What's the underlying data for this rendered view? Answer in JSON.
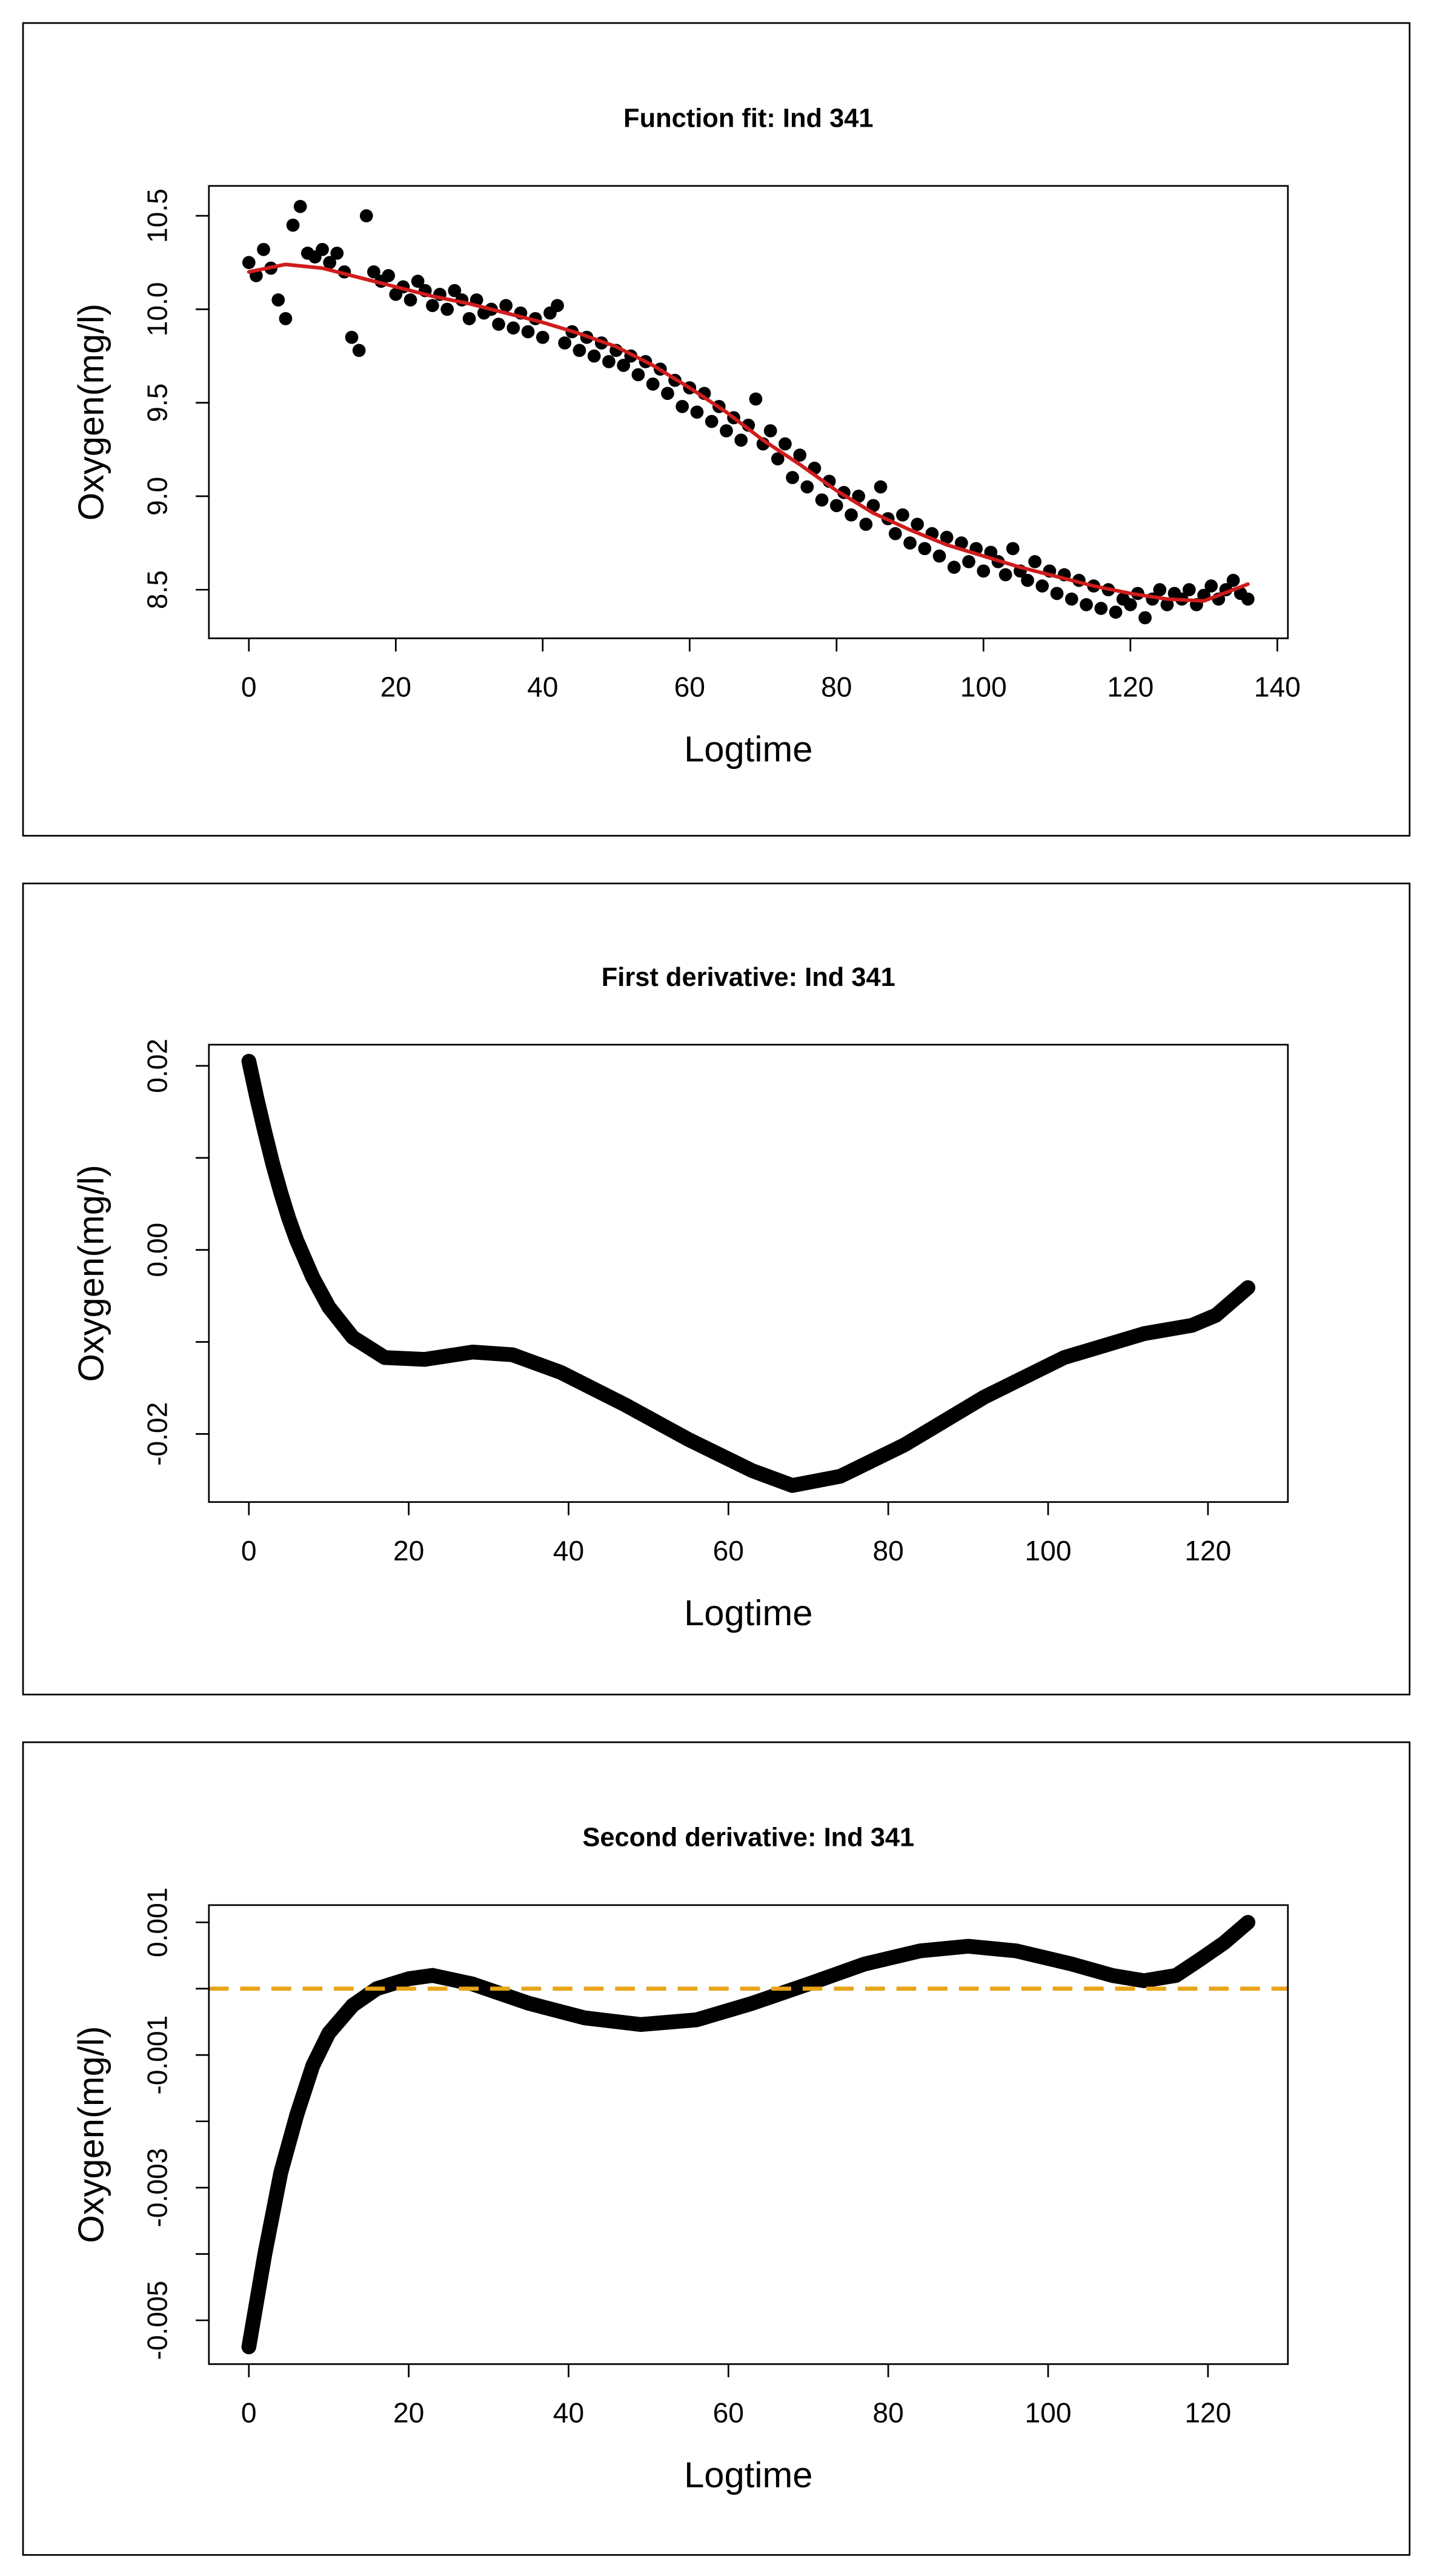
{
  "chart_data": [
    {
      "type": "scatter",
      "title": "Function fit: Ind 341",
      "x_label": "Logtime",
      "y_label": "Oxygen(mg/l)",
      "xlim": [
        -5.44,
        141.44
      ],
      "xticks": [
        0,
        20,
        40,
        60,
        80,
        100,
        120,
        140
      ],
      "ylim": [
        8.24,
        10.66
      ],
      "yticks": [
        {
          "value": 8.5,
          "label": "8.5"
        },
        {
          "value": 9,
          "label": "9.0"
        },
        {
          "value": 9.5,
          "label": "9.5"
        },
        {
          "value": 10,
          "label": "10.0"
        },
        {
          "value": 10.5,
          "label": "10.5"
        }
      ],
      "series": [
        {
          "type": "scatter",
          "color": "#000000",
          "x": [
            0,
            1,
            2,
            3,
            4,
            5,
            6,
            7,
            8,
            9,
            10,
            11,
            12,
            13,
            14,
            15,
            16,
            17,
            18,
            19,
            20,
            21,
            22,
            23,
            24,
            25,
            26,
            27,
            28,
            29,
            30,
            31,
            32,
            33,
            34,
            35,
            36,
            37,
            38,
            39,
            40,
            41,
            42,
            43,
            44,
            45,
            46,
            47,
            48,
            49,
            50,
            51,
            52,
            53,
            54,
            55,
            56,
            57,
            58,
            59,
            60,
            61,
            62,
            63,
            64,
            65,
            66,
            67,
            68,
            69,
            70,
            71,
            72,
            73,
            74,
            75,
            76,
            77,
            78,
            79,
            80,
            81,
            82,
            83,
            84,
            85,
            86,
            87,
            88,
            89,
            90,
            91,
            92,
            93,
            94,
            95,
            96,
            97,
            98,
            99,
            100,
            101,
            102,
            103,
            104,
            105,
            106,
            107,
            108,
            109,
            110,
            111,
            112,
            113,
            114,
            115,
            116,
            117,
            118,
            119,
            120,
            121,
            122,
            123,
            124,
            125,
            126,
            127,
            128,
            129,
            130,
            131,
            132,
            133,
            134,
            135,
            136
          ],
          "values": [
            10.25,
            10.18,
            10.32,
            10.22,
            10.05,
            9.95,
            10.45,
            10.55,
            10.3,
            10.28,
            10.32,
            10.25,
            10.3,
            10.2,
            9.85,
            9.78,
            10.5,
            10.2,
            10.15,
            10.18,
            10.08,
            10.12,
            10.05,
            10.15,
            10.1,
            10.02,
            10.08,
            10.0,
            10.1,
            10.05,
            9.95,
            10.05,
            9.98,
            10.0,
            9.92,
            10.02,
            9.9,
            9.98,
            9.88,
            9.95,
            9.85,
            9.98,
            10.02,
            9.82,
            9.88,
            9.78,
            9.85,
            9.75,
            9.82,
            9.72,
            9.78,
            9.7,
            9.75,
            9.65,
            9.72,
            9.6,
            9.68,
            9.55,
            9.62,
            9.48,
            9.58,
            9.45,
            9.55,
            9.4,
            9.48,
            9.35,
            9.42,
            9.3,
            9.38,
            9.52,
            9.28,
            9.35,
            9.2,
            9.28,
            9.1,
            9.22,
            9.05,
            9.15,
            8.98,
            9.08,
            8.95,
            9.02,
            8.9,
            9.0,
            8.85,
            8.95,
            9.05,
            8.88,
            8.8,
            8.9,
            8.75,
            8.85,
            8.72,
            8.8,
            8.68,
            8.78,
            8.62,
            8.75,
            8.65,
            8.72,
            8.6,
            8.7,
            8.65,
            8.58,
            8.72,
            8.6,
            8.55,
            8.65,
            8.52,
            8.6,
            8.48,
            8.58,
            8.45,
            8.55,
            8.42,
            8.52,
            8.4,
            8.5,
            8.38,
            8.45,
            8.42,
            8.48,
            8.35,
            8.45,
            8.5,
            8.42,
            8.48,
            8.45,
            8.5,
            8.42,
            8.47,
            8.52,
            8.45,
            8.5,
            8.55,
            8.48,
            8.45
          ]
        },
        {
          "type": "line",
          "color": "#d01c1c",
          "x": [
            0,
            5,
            10,
            15,
            20,
            25,
            30,
            35,
            40,
            45,
            50,
            55,
            60,
            65,
            70,
            75,
            80,
            85,
            90,
            95,
            100,
            105,
            110,
            115,
            120,
            125,
            130,
            136
          ],
          "values": [
            10.2,
            10.24,
            10.22,
            10.17,
            10.12,
            10.07,
            10.03,
            9.98,
            9.93,
            9.87,
            9.8,
            9.7,
            9.58,
            9.45,
            9.3,
            9.17,
            9.03,
            8.91,
            8.82,
            8.74,
            8.68,
            8.62,
            8.57,
            8.52,
            8.48,
            8.45,
            8.44,
            8.53
          ]
        }
      ]
    },
    {
      "type": "line",
      "title": "First derivative: Ind  341",
      "x_label": "Logtime",
      "y_label": "Oxygen(mg/l)",
      "xlim": [
        -5,
        130
      ],
      "xticks": [
        0,
        20,
        40,
        60,
        80,
        100,
        120
      ],
      "ylim": [
        -0.0274,
        0.0223
      ],
      "yticks": [
        -0.02,
        {
          "value": -0.01,
          "label": null
        },
        {
          "value": 0,
          "label": "0.00"
        },
        {
          "value": 0.01,
          "label": null
        },
        0.02
      ],
      "series": [
        {
          "type": "line",
          "color": "#000000",
          "x": [
            0,
            1,
            2,
            3,
            4,
            5,
            6,
            8,
            10,
            13,
            17,
            22,
            28,
            33,
            39,
            47,
            55,
            63,
            68,
            74,
            82,
            92,
            102,
            112,
            118,
            121,
            125
          ],
          "values": [
            0.0205,
            0.0165,
            0.0128,
            0.0093,
            0.0062,
            0.0034,
            0.001,
            -0.003,
            -0.0062,
            -0.0095,
            -0.0117,
            -0.0119,
            -0.0111,
            -0.0114,
            -0.0133,
            -0.0168,
            -0.0206,
            -0.024,
            -0.0256,
            -0.0246,
            -0.0212,
            -0.016,
            -0.0117,
            -0.0091,
            -0.0082,
            -0.0071,
            -0.0041
          ]
        }
      ]
    },
    {
      "type": "line",
      "title": "Second derivative: Ind 341",
      "x_label": "Logtime",
      "y_label": "Oxygen(mg/l)",
      "xlim": [
        -5,
        130
      ],
      "xticks": [
        0,
        20,
        40,
        60,
        80,
        100,
        120
      ],
      "ylim": [
        -0.00566,
        0.00126
      ],
      "yticks": [
        -0.005,
        {
          "value": -0.004,
          "label": null
        },
        -0.003,
        {
          "value": -0.002,
          "label": null
        },
        -0.001,
        {
          "value": 0,
          "label": null
        },
        0.001
      ],
      "hlines": [
        {
          "value": 0,
          "color": "#e8a317",
          "dash": true
        }
      ],
      "series": [
        {
          "type": "line",
          "color": "#000000",
          "x": [
            0,
            2,
            4,
            6,
            8,
            10,
            13,
            16,
            20,
            23,
            28,
            35,
            42,
            49,
            56,
            63,
            70,
            77,
            84,
            90,
            96,
            103,
            108,
            112,
            116,
            119,
            122,
            125
          ],
          "values": [
            -0.0054,
            -0.004,
            -0.00277,
            -0.0019,
            -0.00116,
            -0.00067,
            -0.00025,
            0,
            0.00015,
            0.0002,
            7e-05,
            -0.00022,
            -0.00044,
            -0.00054,
            -0.00047,
            -0.00022,
            7e-05,
            0.00037,
            0.00057,
            0.00064,
            0.00057,
            0.00037,
            0.0002,
            0.00012,
            0.0002,
            0.00044,
            0.00069,
            0.001
          ]
        }
      ]
    }
  ]
}
